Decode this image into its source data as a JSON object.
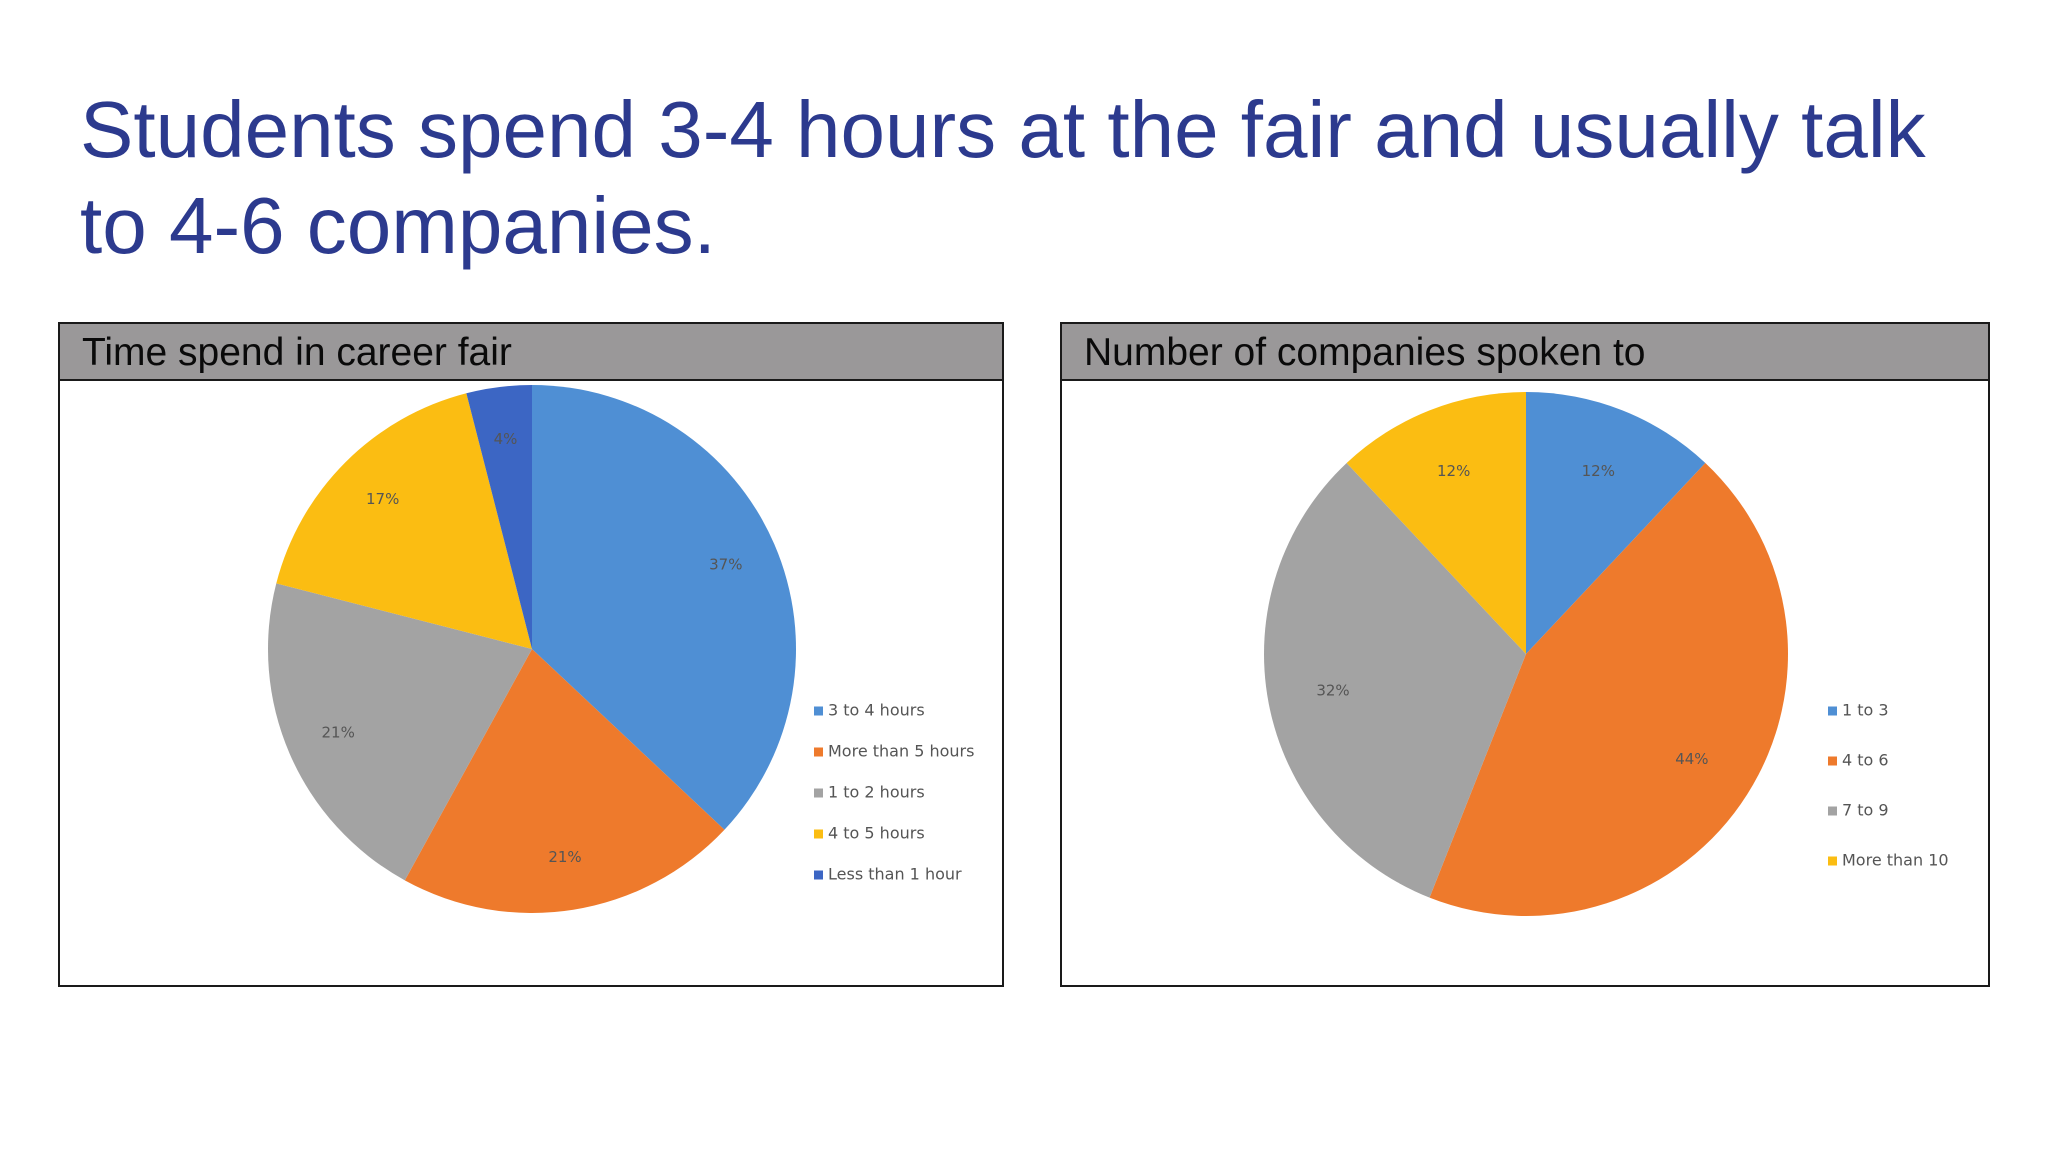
{
  "slide": {
    "title": "Students spend 3-4 hours at the fair and usually talk to 4-6 companies."
  },
  "chart_data": [
    {
      "type": "pie",
      "title": "Time spend in career fair",
      "categories": [
        "3 to 4 hours",
        "More than 5 hours",
        "1 to 2 hours",
        "4 to 5 hours",
        "Less than 1 hour"
      ],
      "values": [
        37,
        21,
        21,
        17,
        4
      ],
      "labels": [
        "37%",
        "21%",
        "21%",
        "17%",
        "4%"
      ],
      "colors": [
        "#4f8fd4",
        "#ee7a2c",
        "#a3a3a3",
        "#fbbd12",
        "#3c66c4"
      ],
      "legend": "right"
    },
    {
      "type": "pie",
      "title": "Number of companies spoken to",
      "categories": [
        "1 to 3",
        "4 to 6",
        "7 to 9",
        "More than 10"
      ],
      "values": [
        12,
        44,
        32,
        12
      ],
      "labels": [
        "12%",
        "44%",
        "32%",
        "12%"
      ],
      "colors": [
        "#4f8fd4",
        "#ee7a2c",
        "#a3a3a3",
        "#fbbd12"
      ],
      "legend": "right"
    }
  ]
}
